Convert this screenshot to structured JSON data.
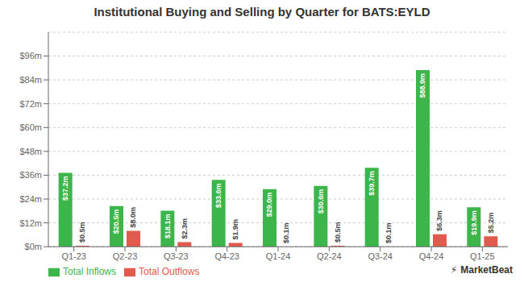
{
  "chart_data": {
    "type": "bar",
    "title": "Institutional Buying and Selling by Quarter for BATS:EYLD",
    "categories": [
      "Q1-23",
      "Q2-23",
      "Q3-23",
      "Q4-23",
      "Q1-24",
      "Q2-24",
      "Q3-24",
      "Q4-24",
      "Q1-25"
    ],
    "series": [
      {
        "name": "Total Inflows",
        "color": "#3cb54a",
        "values": [
          37.2,
          20.5,
          18.1,
          33.6,
          29.0,
          30.6,
          39.7,
          88.9,
          19.9
        ],
        "value_labels": [
          "$37.2m",
          "$20.5m",
          "$18.1m",
          "$33.6m",
          "$29.0m",
          "$30.6m",
          "$39.7m",
          "$88.9m",
          "$19.9m"
        ]
      },
      {
        "name": "Total Outflows",
        "color": "#e05a4e",
        "values": [
          0.5,
          8.0,
          2.3,
          1.9,
          0.1,
          0.5,
          0.1,
          6.3,
          5.2
        ],
        "value_labels": [
          "$0.5m",
          "$8.0m",
          "$2.3m",
          "$1.9m",
          "$0.1m",
          "$0.5m",
          "$0.1m",
          "$6.3m",
          "$5.2m"
        ]
      }
    ],
    "data_labels": true,
    "ylim": [
      0,
      108
    ],
    "yticks": [
      {
        "value": 0,
        "label": "$0m"
      },
      {
        "value": 12,
        "label": "$12m"
      },
      {
        "value": 24,
        "label": "$24m"
      },
      {
        "value": 36,
        "label": "$36m"
      },
      {
        "value": 48,
        "label": "$48m"
      },
      {
        "value": 60,
        "label": "$60m"
      },
      {
        "value": 72,
        "label": "$72m"
      },
      {
        "value": 84,
        "label": "$84m"
      },
      {
        "value": 96,
        "label": "$96m"
      }
    ],
    "grid": true,
    "legend": "lower left",
    "annotations": [
      "MarketBeat",
      "⚡"
    ]
  }
}
